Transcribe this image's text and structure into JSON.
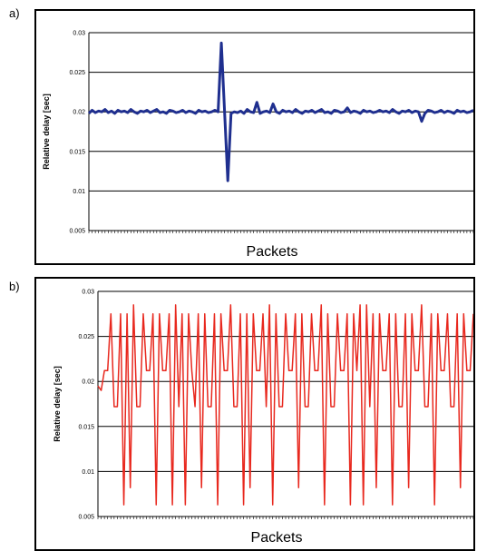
{
  "panels": [
    {
      "label": "a)",
      "chart_data": {
        "type": "line",
        "xlabel": "Packets",
        "ylabel": "Relative delay [sec]",
        "ylim": [
          0.005,
          0.03
        ],
        "yticks": [
          "0.005",
          "0.01",
          "0.015",
          "0.02",
          "0.025",
          "0.03"
        ],
        "grid": true,
        "series": [
          {
            "color": "#1f2f8f",
            "values": [
              0.0198,
              0.0202,
              0.0199,
              0.0201,
              0.02,
              0.0203,
              0.0199,
              0.0201,
              0.0198,
              0.0202,
              0.02,
              0.0201,
              0.0199,
              0.0203,
              0.02,
              0.0198,
              0.0201,
              0.02,
              0.0202,
              0.0199,
              0.0201,
              0.0203,
              0.0199,
              0.02,
              0.0198,
              0.0202,
              0.0201,
              0.0199,
              0.02,
              0.0202,
              0.0199,
              0.0201,
              0.02,
              0.0198,
              0.0202,
              0.02,
              0.0201,
              0.0199,
              0.02,
              0.0202,
              0.02,
              0.0287,
              0.02,
              0.0113,
              0.0198,
              0.02,
              0.0199,
              0.0201,
              0.0198,
              0.0203,
              0.02,
              0.0199,
              0.0212,
              0.0198,
              0.02,
              0.0201,
              0.0199,
              0.021,
              0.02,
              0.0198,
              0.0202,
              0.02,
              0.0201,
              0.0199,
              0.0203,
              0.02,
              0.0198,
              0.0201,
              0.02,
              0.0202,
              0.0199,
              0.0201,
              0.0203,
              0.0199,
              0.02,
              0.0198,
              0.0202,
              0.0201,
              0.0199,
              0.02,
              0.0205,
              0.0199,
              0.0201,
              0.02,
              0.0198,
              0.0202,
              0.02,
              0.0201,
              0.0199,
              0.02,
              0.0202,
              0.02,
              0.0201,
              0.0199,
              0.0203,
              0.02,
              0.0198,
              0.0201,
              0.02,
              0.0202,
              0.0199,
              0.0201,
              0.02,
              0.0188,
              0.0198,
              0.0202,
              0.0201,
              0.0199,
              0.02,
              0.0202,
              0.0199,
              0.0201,
              0.02,
              0.0198,
              0.0202,
              0.02,
              0.0201,
              0.0199,
              0.02,
              0.0202
            ]
          }
        ]
      }
    },
    {
      "label": "b)",
      "chart_data": {
        "type": "line",
        "xlabel": "Packets",
        "ylabel": "Relative delay [sec]",
        "ylim": [
          0.005,
          0.03
        ],
        "yticks": [
          "0.005",
          "0.01",
          "0.015",
          "0.02",
          "0.025",
          "0.03"
        ],
        "grid": true,
        "series": [
          {
            "color": "#e8281e",
            "values": [
              0.0195,
              0.019,
              0.0212,
              0.0212,
              0.0275,
              0.0172,
              0.0172,
              0.0275,
              0.0063,
              0.0275,
              0.0082,
              0.0285,
              0.0172,
              0.0172,
              0.0275,
              0.0212,
              0.0212,
              0.0275,
              0.0063,
              0.0275,
              0.0212,
              0.0212,
              0.0275,
              0.0063,
              0.0285,
              0.0172,
              0.0275,
              0.0063,
              0.0275,
              0.0212,
              0.0172,
              0.0275,
              0.0082,
              0.0275,
              0.0172,
              0.0172,
              0.0275,
              0.0063,
              0.0275,
              0.0212,
              0.0212,
              0.0285,
              0.0172,
              0.0172,
              0.0275,
              0.0063,
              0.0275,
              0.0082,
              0.0275,
              0.0212,
              0.0212,
              0.0275,
              0.0172,
              0.0285,
              0.0063,
              0.0275,
              0.0172,
              0.0172,
              0.0275,
              0.0212,
              0.0212,
              0.0275,
              0.0082,
              0.0275,
              0.0172,
              0.0172,
              0.0275,
              0.0212,
              0.0212,
              0.0285,
              0.0063,
              0.0275,
              0.0172,
              0.0172,
              0.0275,
              0.0212,
              0.0212,
              0.0275,
              0.0063,
              0.0275,
              0.0212,
              0.0285,
              0.0063,
              0.0285,
              0.0172,
              0.0275,
              0.0082,
              0.0275,
              0.0212,
              0.0212,
              0.0275,
              0.0063,
              0.0275,
              0.0172,
              0.0172,
              0.0275,
              0.0082,
              0.0275,
              0.0212,
              0.0212,
              0.0285,
              0.0172,
              0.0172,
              0.0275,
              0.0063,
              0.0275,
              0.0212,
              0.0212,
              0.0275,
              0.0172,
              0.0172,
              0.0275,
              0.0082,
              0.0275,
              0.0212,
              0.0212,
              0.0275
            ]
          }
        ]
      }
    }
  ]
}
